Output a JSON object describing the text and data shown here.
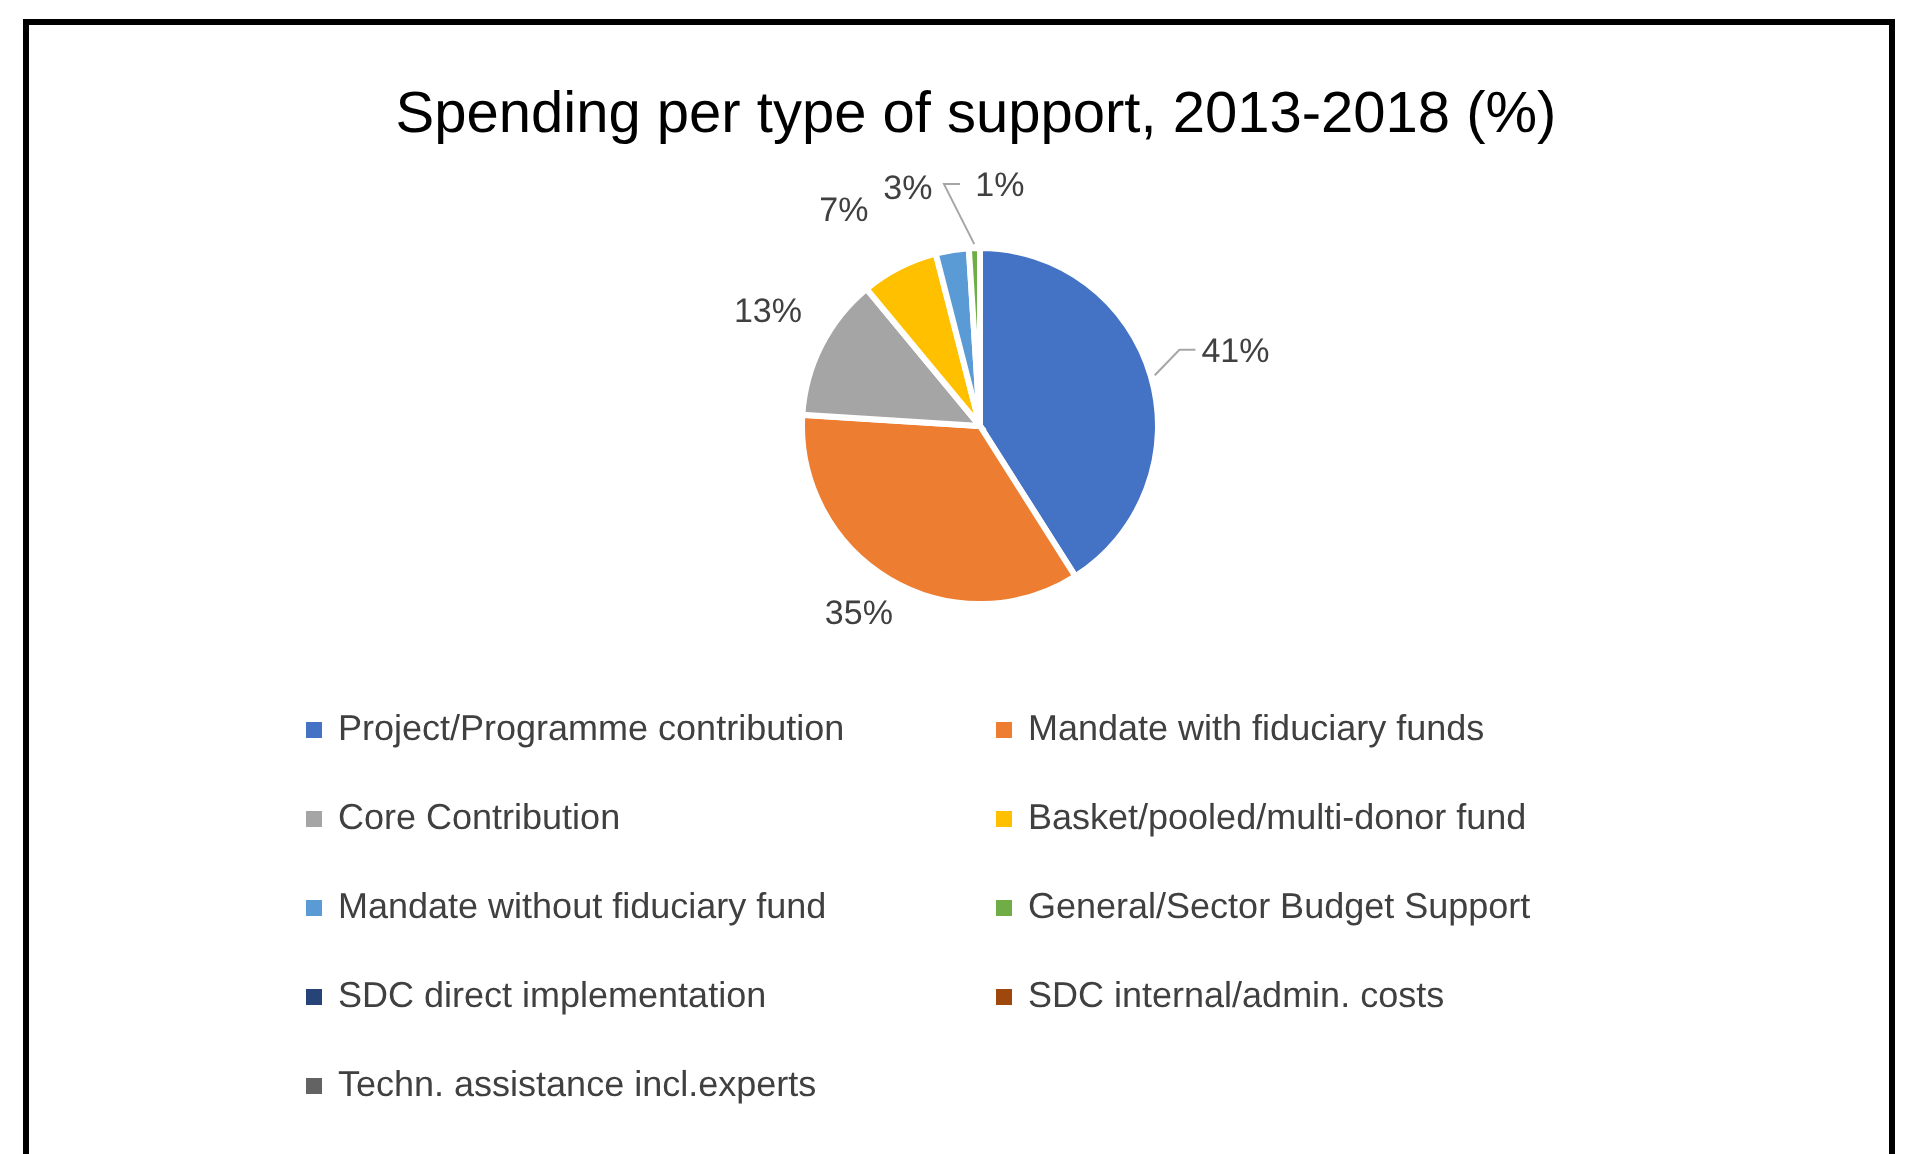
{
  "chart_data": {
    "type": "pie",
    "title": "Spending per type of support, 2013-2018 (%)",
    "categories": [
      "Project/Programme contribution",
      "Mandate with fiduciary funds",
      "Core Contribution",
      "Basket/pooled/multi-donor fund",
      "Mandate without fiduciary fund",
      "General/Sector Budget Support",
      "SDC direct implementation",
      "SDC internal/admin. costs",
      "Techn. assistance incl.experts"
    ],
    "values": [
      41,
      35,
      13,
      7,
      3,
      1,
      0,
      0,
      0
    ],
    "value_labels": [
      "41%",
      "35%",
      "13%",
      "7%",
      "3%",
      "1%",
      null,
      null,
      null
    ],
    "colors": [
      "#4472c4",
      "#ed7d31",
      "#a5a5a5",
      "#ffc000",
      "#5b9bd5",
      "#70ad47",
      "#264478",
      "#9e480e",
      "#636363"
    ],
    "legend": "bottom"
  }
}
